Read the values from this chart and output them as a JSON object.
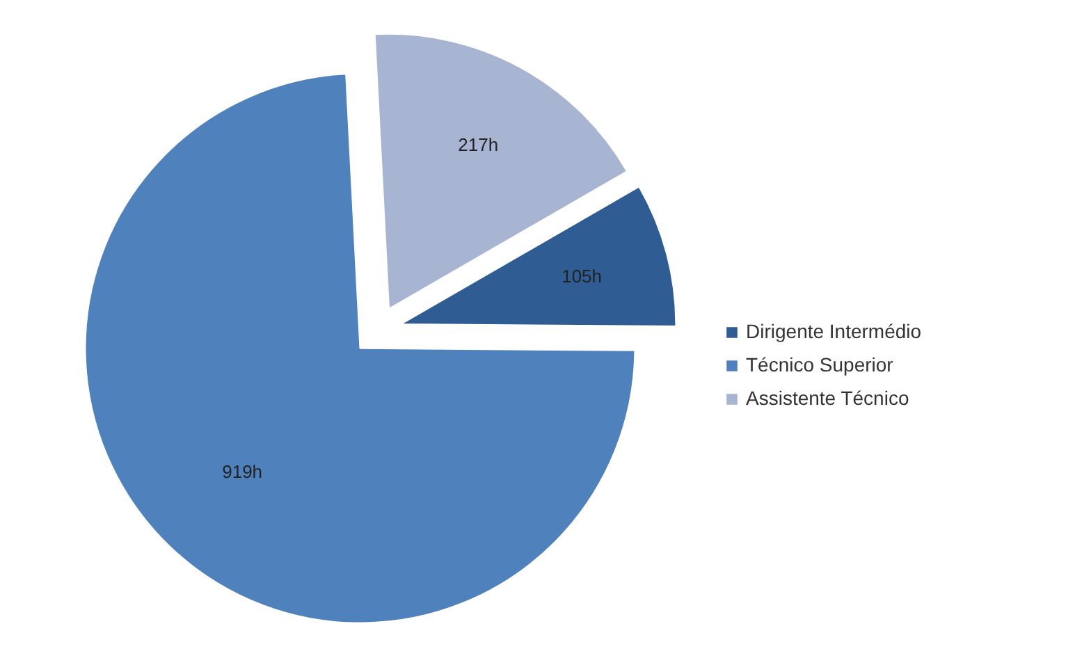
{
  "chart_data": {
    "type": "pie",
    "categories": [
      "Dirigente Intermédio",
      "Técnico Superior",
      "Assistente Técnico"
    ],
    "values": [
      105,
      919,
      217
    ],
    "colors": [
      "#2f5d93",
      "#4f81bd",
      "#a7b5d2"
    ],
    "value_labels": [
      "105h",
      "919h",
      "217h"
    ],
    "legend": "right"
  }
}
